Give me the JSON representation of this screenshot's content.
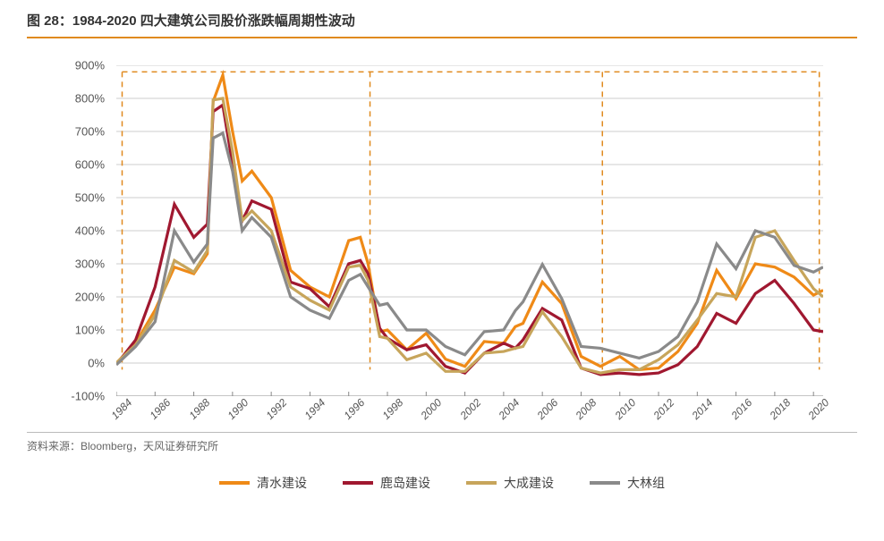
{
  "title": "图 28：1984-2020 四大建筑公司股价涨跌幅周期性波动",
  "source": "资料来源：Bloomberg，天风证券研究所",
  "chart": {
    "type": "line",
    "background_color": "#ffffff",
    "accent_color": "#e08a1f",
    "grid_color": "#cccccc",
    "axis_color": "#888888",
    "label_color": "#555555",
    "label_fontsize": 13,
    "line_width": 3.2,
    "x_min": 1984,
    "x_max": 2020.5,
    "x_ticks": [
      1984,
      1986,
      1988,
      1990,
      1992,
      1994,
      1996,
      1998,
      2000,
      2002,
      2004,
      2006,
      2008,
      2010,
      2012,
      2014,
      2016,
      2018,
      2020
    ],
    "y_min": -100,
    "y_max": 900,
    "y_ticks": [
      -100,
      0,
      100,
      200,
      300,
      400,
      500,
      600,
      700,
      800,
      900
    ],
    "y_suffix": "%",
    "phase_lines": [
      1984.3,
      1997.1,
      2009.1,
      2020.3
    ],
    "phase_top_y": 880,
    "phase_bottom_y": -20,
    "series": [
      {
        "name": "清水建设",
        "color": "#ef8a17",
        "data": [
          [
            1984,
            0
          ],
          [
            1985,
            60
          ],
          [
            1986,
            160
          ],
          [
            1987,
            290
          ],
          [
            1988,
            270
          ],
          [
            1988.7,
            330
          ],
          [
            1989,
            790
          ],
          [
            1989.5,
            870
          ],
          [
            1990,
            700
          ],
          [
            1990.5,
            550
          ],
          [
            1991,
            580
          ],
          [
            1992,
            500
          ],
          [
            1993,
            280
          ],
          [
            1994,
            230
          ],
          [
            1995,
            200
          ],
          [
            1996,
            370
          ],
          [
            1996.6,
            380
          ],
          [
            1997,
            300
          ],
          [
            1997.6,
            95
          ],
          [
            1998,
            100
          ],
          [
            1999,
            40
          ],
          [
            2000,
            90
          ],
          [
            2001,
            12
          ],
          [
            2002,
            -10
          ],
          [
            2003,
            65
          ],
          [
            2004,
            60
          ],
          [
            2004.6,
            110
          ],
          [
            2005,
            120
          ],
          [
            2006,
            245
          ],
          [
            2007,
            180
          ],
          [
            2008,
            20
          ],
          [
            2009,
            -10
          ],
          [
            2010,
            20
          ],
          [
            2011,
            -20
          ],
          [
            2012,
            -15
          ],
          [
            2013,
            35
          ],
          [
            2014,
            120
          ],
          [
            2015,
            280
          ],
          [
            2016,
            195
          ],
          [
            2017,
            300
          ],
          [
            2018,
            290
          ],
          [
            2019,
            260
          ],
          [
            2020,
            205
          ],
          [
            2020.5,
            220
          ]
        ]
      },
      {
        "name": "鹿岛建设",
        "color": "#a01830",
        "data": [
          [
            1984,
            -5
          ],
          [
            1985,
            70
          ],
          [
            1986,
            230
          ],
          [
            1987,
            480
          ],
          [
            1988,
            380
          ],
          [
            1988.7,
            420
          ],
          [
            1989,
            760
          ],
          [
            1989.5,
            780
          ],
          [
            1990,
            600
          ],
          [
            1990.5,
            430
          ],
          [
            1991,
            490
          ],
          [
            1992,
            465
          ],
          [
            1993,
            245
          ],
          [
            1994,
            225
          ],
          [
            1995,
            170
          ],
          [
            1996,
            300
          ],
          [
            1996.6,
            310
          ],
          [
            1997,
            270
          ],
          [
            1997.6,
            105
          ],
          [
            1998,
            75
          ],
          [
            1999,
            40
          ],
          [
            2000,
            55
          ],
          [
            2001,
            -10
          ],
          [
            2002,
            -30
          ],
          [
            2003,
            30
          ],
          [
            2004,
            60
          ],
          [
            2004.6,
            45
          ],
          [
            2005,
            70
          ],
          [
            2006,
            165
          ],
          [
            2007,
            130
          ],
          [
            2008,
            -15
          ],
          [
            2009,
            -35
          ],
          [
            2010,
            -30
          ],
          [
            2011,
            -35
          ],
          [
            2012,
            -30
          ],
          [
            2013,
            -5
          ],
          [
            2014,
            50
          ],
          [
            2015,
            150
          ],
          [
            2016,
            120
          ],
          [
            2017,
            210
          ],
          [
            2018,
            250
          ],
          [
            2019,
            180
          ],
          [
            2020,
            100
          ],
          [
            2020.5,
            95
          ]
        ]
      },
      {
        "name": "大成建设",
        "color": "#c7a55b",
        "data": [
          [
            1984,
            0
          ],
          [
            1985,
            55
          ],
          [
            1986,
            145
          ],
          [
            1987,
            310
          ],
          [
            1988,
            275
          ],
          [
            1988.7,
            340
          ],
          [
            1989,
            795
          ],
          [
            1989.5,
            800
          ],
          [
            1990,
            640
          ],
          [
            1990.5,
            430
          ],
          [
            1991,
            460
          ],
          [
            1992,
            400
          ],
          [
            1993,
            230
          ],
          [
            1994,
            190
          ],
          [
            1995,
            160
          ],
          [
            1996,
            290
          ],
          [
            1996.6,
            295
          ],
          [
            1997,
            250
          ],
          [
            1997.6,
            80
          ],
          [
            1998,
            75
          ],
          [
            1999,
            10
          ],
          [
            2000,
            30
          ],
          [
            2001,
            -25
          ],
          [
            2002,
            -25
          ],
          [
            2003,
            30
          ],
          [
            2004,
            35
          ],
          [
            2004.6,
            45
          ],
          [
            2005,
            50
          ],
          [
            2006,
            155
          ],
          [
            2007,
            80
          ],
          [
            2008,
            -15
          ],
          [
            2009,
            -30
          ],
          [
            2010,
            -20
          ],
          [
            2011,
            -20
          ],
          [
            2012,
            10
          ],
          [
            2013,
            55
          ],
          [
            2014,
            130
          ],
          [
            2015,
            210
          ],
          [
            2016,
            200
          ],
          [
            2017,
            380
          ],
          [
            2018,
            400
          ],
          [
            2019,
            310
          ],
          [
            2020,
            225
          ],
          [
            2020.5,
            200
          ]
        ]
      },
      {
        "name": "大林组",
        "color": "#8a8a8a",
        "data": [
          [
            1984,
            -5
          ],
          [
            1985,
            50
          ],
          [
            1986,
            125
          ],
          [
            1987,
            400
          ],
          [
            1988,
            305
          ],
          [
            1988.7,
            360
          ],
          [
            1989,
            680
          ],
          [
            1989.5,
            695
          ],
          [
            1990,
            580
          ],
          [
            1990.5,
            400
          ],
          [
            1991,
            440
          ],
          [
            1992,
            380
          ],
          [
            1993,
            200
          ],
          [
            1994,
            160
          ],
          [
            1995,
            135
          ],
          [
            1996,
            250
          ],
          [
            1996.6,
            268
          ],
          [
            1997,
            230
          ],
          [
            1997.6,
            175
          ],
          [
            1998,
            180
          ],
          [
            1999,
            100
          ],
          [
            2000,
            100
          ],
          [
            2001,
            50
          ],
          [
            2002,
            25
          ],
          [
            2003,
            95
          ],
          [
            2004,
            100
          ],
          [
            2004.6,
            158
          ],
          [
            2005,
            185
          ],
          [
            2006,
            298
          ],
          [
            2007,
            195
          ],
          [
            2008,
            50
          ],
          [
            2009,
            45
          ],
          [
            2010,
            30
          ],
          [
            2011,
            15
          ],
          [
            2012,
            35
          ],
          [
            2013,
            80
          ],
          [
            2014,
            185
          ],
          [
            2015,
            360
          ],
          [
            2016,
            285
          ],
          [
            2017,
            400
          ],
          [
            2018,
            380
          ],
          [
            2019,
            295
          ],
          [
            2020,
            275
          ],
          [
            2020.5,
            290
          ]
        ]
      }
    ]
  }
}
